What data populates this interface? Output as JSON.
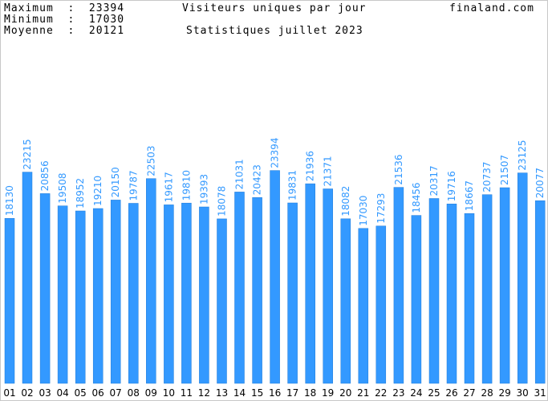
{
  "header": {
    "max_label": "Maximum  :  23394",
    "min_label": "Minimum  :  17030",
    "avg_label": "Moyenne  :  20121",
    "title": "Visiteurs uniques par jour",
    "subtitle": "Statistiques juillet 2023",
    "site": "finaland.com"
  },
  "colors": {
    "bar": "#3399ff",
    "bar_edge": "#1f7ad8",
    "value_label": "#3399ff",
    "background": "#ffffff"
  },
  "chart_data": {
    "type": "bar",
    "title": "Visiteurs uniques par jour",
    "subtitle": "Statistiques juillet 2023",
    "xlabel": "",
    "ylabel": "",
    "grid": false,
    "ylim": [
      0,
      26000
    ],
    "categories": [
      "01",
      "02",
      "03",
      "04",
      "05",
      "06",
      "07",
      "08",
      "09",
      "10",
      "11",
      "12",
      "13",
      "14",
      "15",
      "16",
      "17",
      "18",
      "19",
      "20",
      "21",
      "22",
      "23",
      "24",
      "25",
      "26",
      "27",
      "28",
      "29",
      "30",
      "31"
    ],
    "values": [
      18130,
      23215,
      20856,
      19508,
      18952,
      19210,
      20150,
      19787,
      22503,
      19617,
      19810,
      19393,
      18078,
      21031,
      20423,
      23394,
      19831,
      21936,
      21371,
      18082,
      17030,
      17293,
      21536,
      18456,
      20317,
      19716,
      18667,
      20737,
      21507,
      23125,
      20077
    ]
  }
}
